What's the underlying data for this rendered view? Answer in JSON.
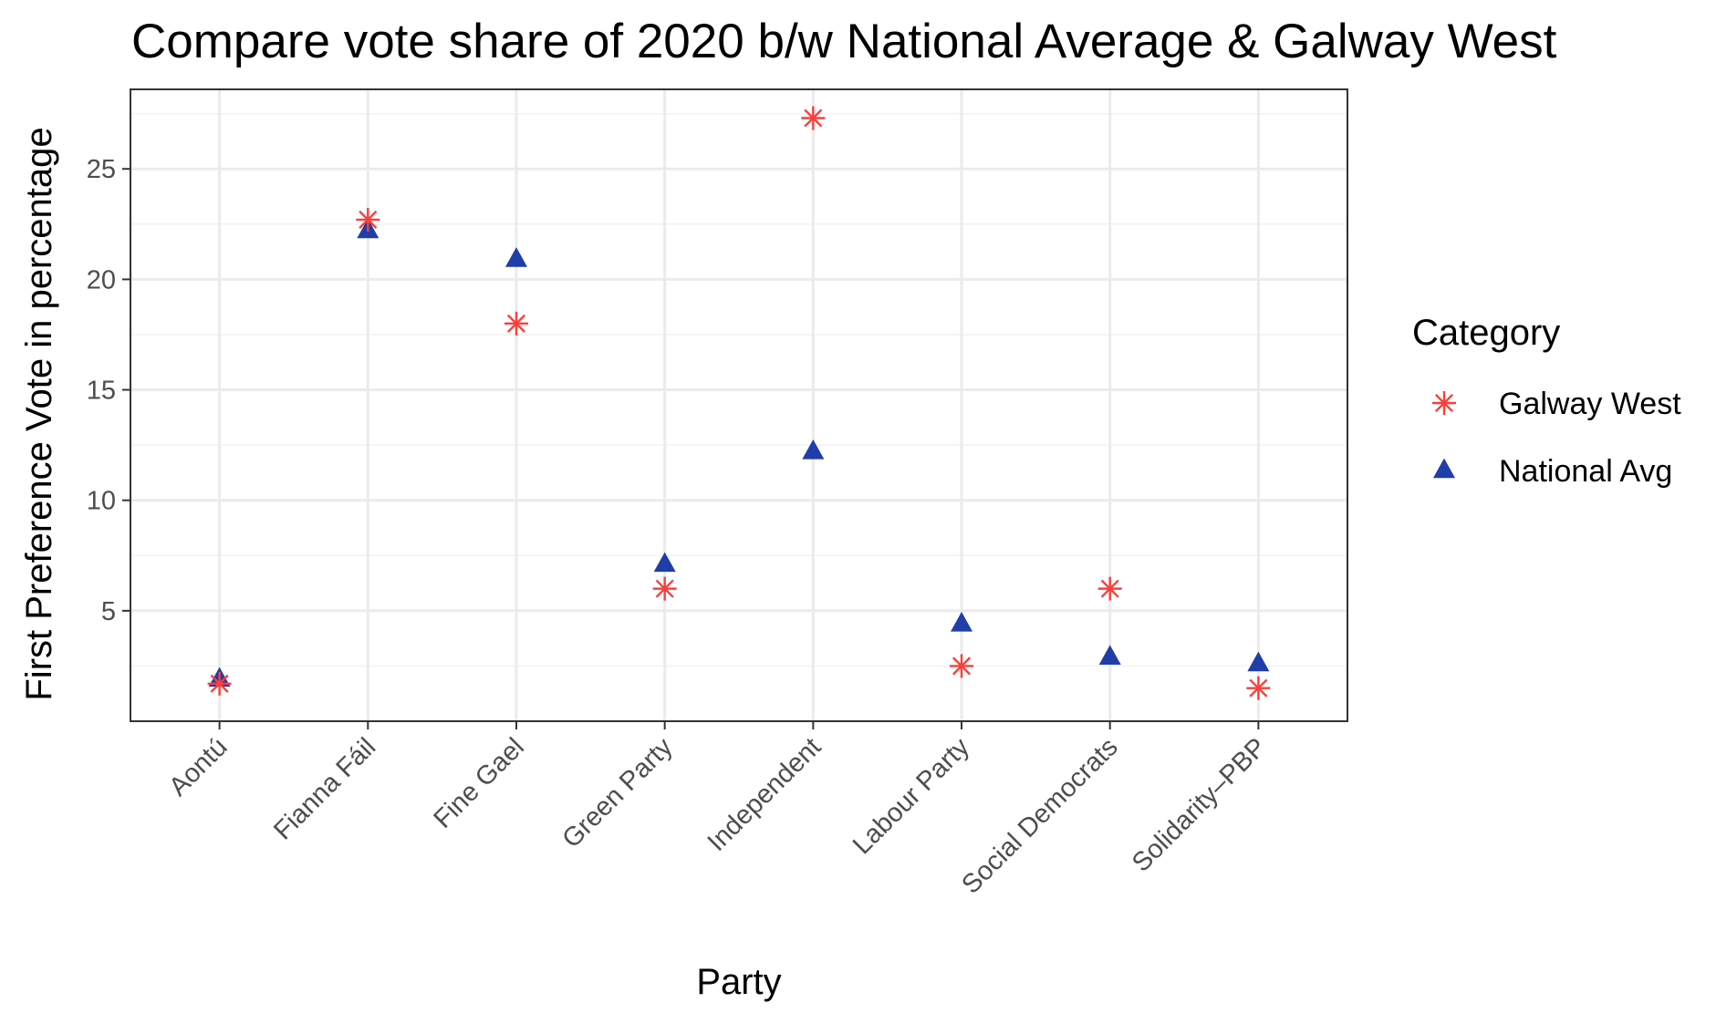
{
  "chart_data": {
    "type": "scatter",
    "title": "Compare vote share of 2020 b/w National Average & Galway West",
    "xlabel": "Party",
    "ylabel": "First Preference Vote in percentage",
    "categories": [
      "Aontú",
      "Fianna Fáil",
      "Fine Gael",
      "Green Party",
      "Independent",
      "Labour Party",
      "Social Democrats",
      "Solidarity–PBP"
    ],
    "ylim": [
      0,
      28.6
    ],
    "yticks": [
      5,
      10,
      15,
      20,
      25
    ],
    "ytick_labels": [
      "5",
      "10",
      "15",
      "20",
      "25"
    ],
    "grid": true,
    "legend": {
      "title": "Category",
      "position": "right"
    },
    "series": [
      {
        "name": "Galway West",
        "marker": "asterisk",
        "color": "#f8403c",
        "values": [
          1.7,
          22.7,
          18.0,
          6.0,
          27.3,
          2.5,
          6.0,
          1.5
        ]
      },
      {
        "name": "National Avg",
        "marker": "triangle",
        "color": "#1f3ea8",
        "values": [
          1.9,
          22.2,
          20.9,
          7.1,
          12.2,
          4.4,
          2.9,
          2.6
        ]
      }
    ]
  }
}
